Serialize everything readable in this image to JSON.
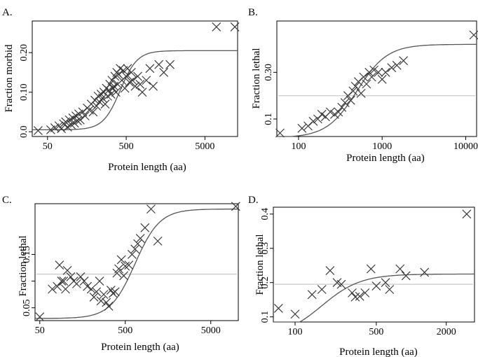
{
  "chart_data": [
    {
      "type": "scatter",
      "panel": "A.",
      "xlabel": "Protein length (aa)",
      "ylabel": "Fraction morbid",
      "xscale": "log",
      "xlim": [
        32,
        13000
      ],
      "ylim": [
        -0.012,
        0.28
      ],
      "xticks": [
        50,
        500,
        5000
      ],
      "xtick_labels": [
        "50",
        "500",
        "5000"
      ],
      "yticks": [
        0.0,
        0.1,
        0.2
      ],
      "ytick_labels": [
        "0.0",
        "0.10",
        "0.20"
      ],
      "reference_line": null,
      "curve": {
        "lower": 0.005,
        "upper": 0.205,
        "midpoint": 420,
        "slope": 4.0
      },
      "points": [
        [
          38,
          0.003
        ],
        [
          55,
          0.005
        ],
        [
          62,
          0.01
        ],
        [
          70,
          0.015
        ],
        [
          75,
          0.008
        ],
        [
          80,
          0.02
        ],
        [
          85,
          0.025
        ],
        [
          90,
          0.012
        ],
        [
          95,
          0.03
        ],
        [
          100,
          0.018
        ],
        [
          105,
          0.035
        ],
        [
          110,
          0.022
        ],
        [
          115,
          0.04
        ],
        [
          120,
          0.028
        ],
        [
          125,
          0.045
        ],
        [
          130,
          0.03
        ],
        [
          140,
          0.05
        ],
        [
          150,
          0.04
        ],
        [
          160,
          0.06
        ],
        [
          170,
          0.055
        ],
        [
          180,
          0.07
        ],
        [
          190,
          0.05
        ],
        [
          200,
          0.08
        ],
        [
          210,
          0.065
        ],
        [
          220,
          0.09
        ],
        [
          230,
          0.075
        ],
        [
          240,
          0.095
        ],
        [
          250,
          0.085
        ],
        [
          260,
          0.1
        ],
        [
          270,
          0.07
        ],
        [
          280,
          0.11
        ],
        [
          290,
          0.09
        ],
        [
          300,
          0.105
        ],
        [
          310,
          0.12
        ],
        [
          320,
          0.095
        ],
        [
          330,
          0.13
        ],
        [
          340,
          0.11
        ],
        [
          350,
          0.115
        ],
        [
          360,
          0.14
        ],
        [
          370,
          0.1
        ],
        [
          380,
          0.15
        ],
        [
          390,
          0.12
        ],
        [
          400,
          0.145
        ],
        [
          420,
          0.16
        ],
        [
          440,
          0.13
        ],
        [
          460,
          0.155
        ],
        [
          480,
          0.11
        ],
        [
          500,
          0.14
        ],
        [
          520,
          0.16
        ],
        [
          550,
          0.125
        ],
        [
          580,
          0.15
        ],
        [
          600,
          0.13
        ],
        [
          650,
          0.115
        ],
        [
          700,
          0.14
        ],
        [
          750,
          0.12
        ],
        [
          800,
          0.1
        ],
        [
          900,
          0.13
        ],
        [
          1000,
          0.16
        ],
        [
          1100,
          0.115
        ],
        [
          1300,
          0.17
        ],
        [
          1500,
          0.15
        ],
        [
          1800,
          0.17
        ],
        [
          7000,
          0.265
        ],
        [
          12000,
          0.265
        ]
      ]
    },
    {
      "type": "scatter",
      "panel": "B.",
      "xlabel": "Protein length (aa)",
      "ylabel": "Fraction lethal",
      "xscale": "log",
      "xlim": [
        55,
        13500
      ],
      "ylim": [
        0.025,
        0.52
      ],
      "xticks": [
        100,
        1000,
        10000
      ],
      "xtick_labels": [
        "100",
        "1000",
        "10000"
      ],
      "yticks": [
        0.1,
        0.3
      ],
      "ytick_labels": [
        "0.1",
        "0.30"
      ],
      "reference_line": 0.2,
      "curve": {
        "lower": 0.02,
        "upper": 0.42,
        "midpoint": 500,
        "slope": 2.4
      },
      "points": [
        [
          60,
          0.04
        ],
        [
          110,
          0.06
        ],
        [
          130,
          0.07
        ],
        [
          150,
          0.09
        ],
        [
          170,
          0.1
        ],
        [
          190,
          0.12
        ],
        [
          210,
          0.11
        ],
        [
          240,
          0.13
        ],
        [
          270,
          0.12
        ],
        [
          300,
          0.13
        ],
        [
          330,
          0.15
        ],
        [
          360,
          0.17
        ],
        [
          390,
          0.2
        ],
        [
          420,
          0.18
        ],
        [
          450,
          0.22
        ],
        [
          480,
          0.24
        ],
        [
          520,
          0.26
        ],
        [
          560,
          0.21
        ],
        [
          600,
          0.28
        ],
        [
          650,
          0.25
        ],
        [
          700,
          0.3
        ],
        [
          750,
          0.28
        ],
        [
          800,
          0.31
        ],
        [
          900,
          0.3
        ],
        [
          1000,
          0.27
        ],
        [
          1100,
          0.3
        ],
        [
          1300,
          0.32
        ],
        [
          1500,
          0.33
        ],
        [
          1800,
          0.35
        ],
        [
          12500,
          0.46
        ]
      ]
    },
    {
      "type": "scatter",
      "panel": "C.",
      "xlabel": "Protein length (aa)",
      "ylabel": "Fraction lethal",
      "xscale": "log",
      "xlim": [
        44,
        10500
      ],
      "ylim": [
        0.026,
        0.245
      ],
      "xticks": [
        50,
        500,
        5000
      ],
      "xtick_labels": [
        "50",
        "500",
        "5000"
      ],
      "yticks": [
        0.05,
        0.1,
        0.15
      ],
      "ytick_labels": [
        "0.05",
        "",
        "0.15"
      ],
      "reference_line": 0.113,
      "curve": {
        "lower": 0.03,
        "upper": 0.235,
        "midpoint": 650,
        "slope": 3.0
      },
      "points": [
        [
          50,
          0.033
        ],
        [
          70,
          0.085
        ],
        [
          80,
          0.09
        ],
        [
          85,
          0.13
        ],
        [
          90,
          0.1
        ],
        [
          95,
          0.1
        ],
        [
          100,
          0.085
        ],
        [
          105,
          0.12
        ],
        [
          115,
          0.108
        ],
        [
          125,
          0.1
        ],
        [
          135,
          0.095
        ],
        [
          150,
          0.108
        ],
        [
          165,
          0.1
        ],
        [
          180,
          0.09
        ],
        [
          200,
          0.085
        ],
        [
          215,
          0.07
        ],
        [
          230,
          0.08
        ],
        [
          250,
          0.1
        ],
        [
          260,
          0.063
        ],
        [
          280,
          0.075
        ],
        [
          300,
          0.06
        ],
        [
          320,
          0.053
        ],
        [
          340,
          0.083
        ],
        [
          360,
          0.077
        ],
        [
          380,
          0.08
        ],
        [
          400,
          0.115
        ],
        [
          420,
          0.123
        ],
        [
          450,
          0.14
        ],
        [
          480,
          0.11
        ],
        [
          500,
          0.128
        ],
        [
          550,
          0.13
        ],
        [
          600,
          0.15
        ],
        [
          650,
          0.16
        ],
        [
          700,
          0.17
        ],
        [
          750,
          0.18
        ],
        [
          850,
          0.2
        ],
        [
          1000,
          0.235
        ],
        [
          1200,
          0.175
        ],
        [
          9800,
          0.24
        ]
      ]
    },
    {
      "type": "scatter",
      "panel": "D.",
      "xlabel": "Protein length (aa)",
      "ylabel": "Fraction lethal",
      "xscale": "log",
      "xlim": [
        65,
        3500
      ],
      "ylim": [
        0.085,
        0.42
      ],
      "xticks": [
        100,
        500,
        2000
      ],
      "xtick_labels": [
        "100",
        "500",
        "2000"
      ],
      "yticks": [
        0.1,
        0.2,
        0.3,
        0.4
      ],
      "ytick_labels": [
        "0.1",
        "0.2",
        "0.3",
        "0.4"
      ],
      "reference_line": 0.195,
      "curve": {
        "lower": 0.04,
        "upper": 0.225,
        "midpoint": 170,
        "slope": 2.6
      },
      "points": [
        [
          72,
          0.125
        ],
        [
          100,
          0.108
        ],
        [
          140,
          0.165
        ],
        [
          170,
          0.18
        ],
        [
          200,
          0.235
        ],
        [
          230,
          0.2
        ],
        [
          250,
          0.195
        ],
        [
          310,
          0.17
        ],
        [
          330,
          0.158
        ],
        [
          360,
          0.16
        ],
        [
          400,
          0.17
        ],
        [
          450,
          0.24
        ],
        [
          500,
          0.19
        ],
        [
          600,
          0.2
        ],
        [
          650,
          0.18
        ],
        [
          800,
          0.24
        ],
        [
          900,
          0.22
        ],
        [
          1300,
          0.23
        ],
        [
          3000,
          0.4
        ]
      ]
    }
  ]
}
